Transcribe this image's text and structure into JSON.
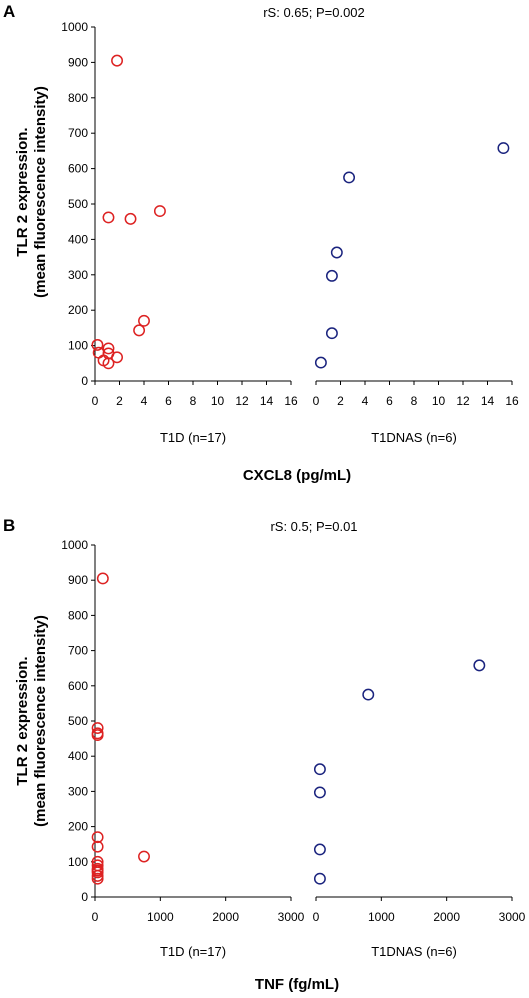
{
  "chart_data": [
    {
      "type": "scatter",
      "panel_label": "A",
      "annotation": "rS: 0.65; P=0.002",
      "ylabel_line1": "TLR 2 expression.",
      "ylabel_line2": "(mean fluorescence intensity)",
      "xlabel": "CXCL8 (pg/mL)",
      "ylim": [
        0,
        1000
      ],
      "yticks": [
        "0",
        "100",
        "200",
        "300",
        "400",
        "500",
        "600",
        "700",
        "800",
        "900",
        "1000"
      ],
      "groups": [
        {
          "name": "T1D (n=17)",
          "color": "#dd2222",
          "xlim": [
            0,
            16
          ],
          "xticks": [
            "0",
            "2",
            "4",
            "6",
            "8",
            "10",
            "12",
            "14",
            "16"
          ],
          "points": [
            [
              1.8,
              905
            ],
            [
              1.1,
              462
            ],
            [
              2.9,
              458
            ],
            [
              5.3,
              480
            ],
            [
              4.0,
              170
            ],
            [
              3.6,
              143
            ],
            [
              0.2,
              102
            ],
            [
              1.1,
              92
            ],
            [
              0.3,
              80
            ],
            [
              1.1,
              78
            ],
            [
              0.7,
              58
            ],
            [
              1.8,
              67
            ],
            [
              1.1,
              50
            ]
          ]
        },
        {
          "name": "T1DNAS (n=6)",
          "color": "#1a237e",
          "xlim": [
            0,
            16
          ],
          "xticks": [
            "0",
            "2",
            "4",
            "6",
            "8",
            "10",
            "12",
            "14",
            "16"
          ],
          "points": [
            [
              15.3,
              658
            ],
            [
              2.7,
              575
            ],
            [
              1.7,
              363
            ],
            [
              1.3,
              297
            ],
            [
              1.3,
              135
            ],
            [
              0.4,
              52
            ]
          ]
        }
      ]
    },
    {
      "type": "scatter",
      "panel_label": "B",
      "annotation": "rS: 0.5; P=0.01",
      "ylabel_line1": "TLR 2 expression.",
      "ylabel_line2": "(mean fluorescence intensity)",
      "xlabel": "TNF (fg/mL)",
      "ylim": [
        0,
        1000
      ],
      "yticks": [
        "0",
        "100",
        "200",
        "300",
        "400",
        "500",
        "600",
        "700",
        "800",
        "900",
        "1000"
      ],
      "groups": [
        {
          "name": "T1D (n=17)",
          "color": "#dd2222",
          "xlim": [
            0,
            3000
          ],
          "xticks": [
            "0",
            "1000",
            "2000",
            "3000"
          ],
          "points": [
            [
              120,
              905
            ],
            [
              40,
              480
            ],
            [
              40,
              465
            ],
            [
              40,
              460
            ],
            [
              40,
              170
            ],
            [
              40,
              143
            ],
            [
              750,
              115
            ],
            [
              40,
              100
            ],
            [
              40,
              90
            ],
            [
              40,
              80
            ],
            [
              40,
              75
            ],
            [
              40,
              70
            ],
            [
              40,
              60
            ],
            [
              40,
              52
            ]
          ]
        },
        {
          "name": "T1DNAS (n=6)",
          "color": "#1a237e",
          "xlim": [
            0,
            3000
          ],
          "xticks": [
            "0",
            "1000",
            "2000",
            "3000"
          ],
          "points": [
            [
              2500,
              658
            ],
            [
              800,
              575
            ],
            [
              60,
              363
            ],
            [
              60,
              297
            ],
            [
              60,
              135
            ],
            [
              60,
              52
            ]
          ]
        }
      ]
    }
  ]
}
